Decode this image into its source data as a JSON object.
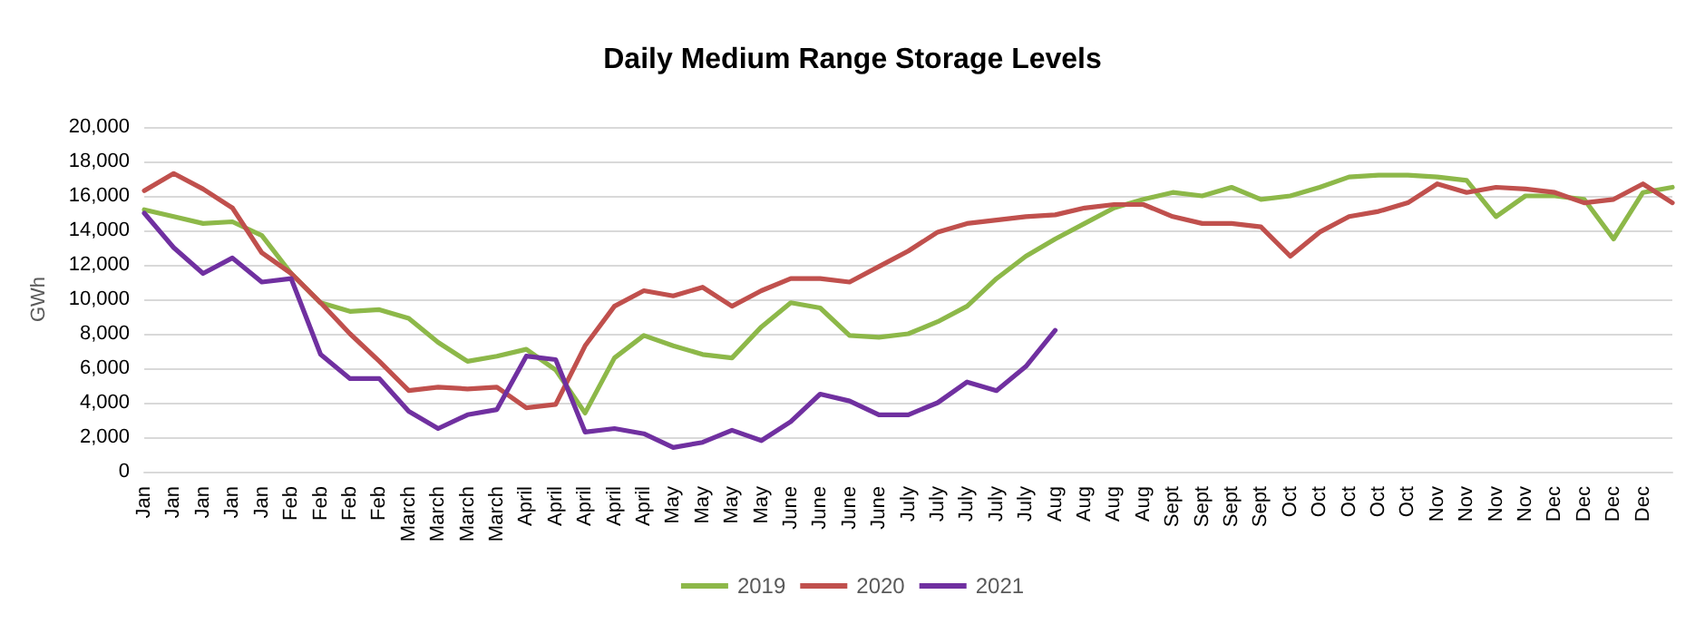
{
  "chart_data": {
    "type": "line",
    "title": "Daily Medium Range Storage Levels",
    "ylabel": "GWh",
    "categories": [
      "Jan",
      "Jan",
      "Jan",
      "Jan",
      "Jan",
      "Feb",
      "Feb",
      "Feb",
      "Feb",
      "March",
      "March",
      "March",
      "March",
      "April",
      "April",
      "April",
      "April",
      "April",
      "May",
      "May",
      "May",
      "May",
      "June",
      "June",
      "June",
      "June",
      "July",
      "July",
      "July",
      "July",
      "July",
      "Aug",
      "Aug",
      "Aug",
      "Aug",
      "Sept",
      "Sept",
      "Sept",
      "Sept",
      "Oct",
      "Oct",
      "Oct",
      "Oct",
      "Oct",
      "Nov",
      "Nov",
      "Nov",
      "Nov",
      "Dec",
      "Dec",
      "Dec",
      "Dec",
      null
    ],
    "series": [
      {
        "name": "2019",
        "color": "#8db849",
        "values": [
          15200,
          14800,
          14400,
          14500,
          13700,
          11500,
          9800,
          9300,
          9400,
          8900,
          7500,
          6400,
          6700,
          7100,
          5900,
          3400,
          6600,
          7900,
          7300,
          6800,
          6600,
          8400,
          9800,
          9500,
          7900,
          7800,
          8000,
          8700,
          9600,
          11200,
          12500,
          13500,
          14400,
          15300,
          15800,
          16200,
          16000,
          16500,
          15800,
          16000,
          16500,
          17100,
          17200,
          17200,
          17100,
          16900,
          14800,
          16000,
          16000,
          15800,
          13500,
          16200,
          16500
        ]
      },
      {
        "name": "2020",
        "color": "#c0504d",
        "values": [
          16300,
          17300,
          16400,
          15300,
          12700,
          11500,
          9800,
          8000,
          6400,
          4700,
          4900,
          4800,
          4900,
          3700,
          3900,
          7300,
          9600,
          10500,
          10200,
          10700,
          9600,
          10500,
          11200,
          11200,
          11000,
          11900,
          12800,
          13900,
          14400,
          14600,
          14800,
          14900,
          15300,
          15500,
          15500,
          14800,
          14400,
          14400,
          14200,
          12500,
          13900,
          14800,
          15100,
          15600,
          16700,
          16200,
          16500,
          16400,
          16200,
          15600,
          15800,
          16700,
          15600
        ]
      },
      {
        "name": "2021",
        "color": "#7030a0",
        "values": [
          15000,
          13000,
          11500,
          12400,
          11000,
          11200,
          6800,
          5400,
          5400,
          3500,
          2500,
          3300,
          3600,
          6700,
          6500,
          2300,
          2500,
          2200,
          1400,
          1700,
          2400,
          1800,
          2900,
          4500,
          4100,
          3300,
          3300,
          4000,
          5200,
          4700,
          6100,
          8200,
          null,
          null,
          null,
          null,
          null,
          null,
          null,
          null,
          null,
          null,
          null,
          null,
          null,
          null,
          null,
          null,
          null,
          null,
          null,
          null,
          null
        ]
      }
    ],
    "ylim": [
      0,
      20000
    ],
    "yticks": [
      {
        "value": 0,
        "label": "0"
      },
      {
        "value": 2000,
        "label": "2,000"
      },
      {
        "value": 4000,
        "label": "4,000"
      },
      {
        "value": 6000,
        "label": "6,000"
      },
      {
        "value": 8000,
        "label": "8,000"
      },
      {
        "value": 10000,
        "label": "10,000"
      },
      {
        "value": 12000,
        "label": "12,000"
      },
      {
        "value": 14000,
        "label": "14,000"
      },
      {
        "value": 16000,
        "label": "16,000"
      },
      {
        "value": 18000,
        "label": "18,000"
      },
      {
        "value": 20000,
        "label": "20,000"
      }
    ],
    "grid": "y",
    "legend": "bottom",
    "marker": "none",
    "line_style": "solid"
  }
}
